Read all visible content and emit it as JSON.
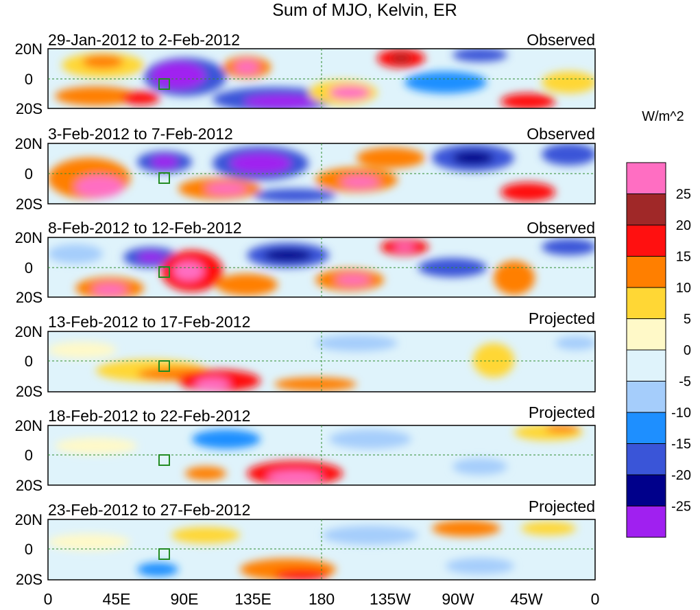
{
  "title": "Sum of MJO, Kelvin, ER",
  "colorbar": {
    "units": "W/m^2",
    "colors": [
      "#a020f0",
      "#00008b",
      "#3a55d8",
      "#1e8fff",
      "#a5cdfb",
      "#dff3fb",
      "#fff9c8",
      "#ffd735",
      "#ff7f00",
      "#ff1010",
      "#a02828",
      "#ff6ec2"
    ],
    "labels": [
      "-25",
      "-20",
      "-15",
      "-10",
      "-5",
      "0",
      "5",
      "10",
      "15",
      "20",
      "25"
    ]
  },
  "y_ticks": [
    "20N",
    "0",
    "20S"
  ],
  "x_ticks": [
    "0",
    "45E",
    "90E",
    "135E",
    "180",
    "135W",
    "90W",
    "45W",
    "0"
  ],
  "panels": [
    {
      "date": "29-Jan-2012 to 2-Feb-2012",
      "type": "Observed"
    },
    {
      "date": "3-Feb-2012 to 7-Feb-2012",
      "type": "Observed"
    },
    {
      "date": "8-Feb-2012 to 12-Feb-2012",
      "type": "Observed"
    },
    {
      "date": "13-Feb-2012 to 17-Feb-2012",
      "type": "Projected"
    },
    {
      "date": "18-Feb-2012 to 22-Feb-2012",
      "type": "Projected"
    },
    {
      "date": "23-Feb-2012 to 27-Feb-2012",
      "type": "Projected"
    }
  ]
}
